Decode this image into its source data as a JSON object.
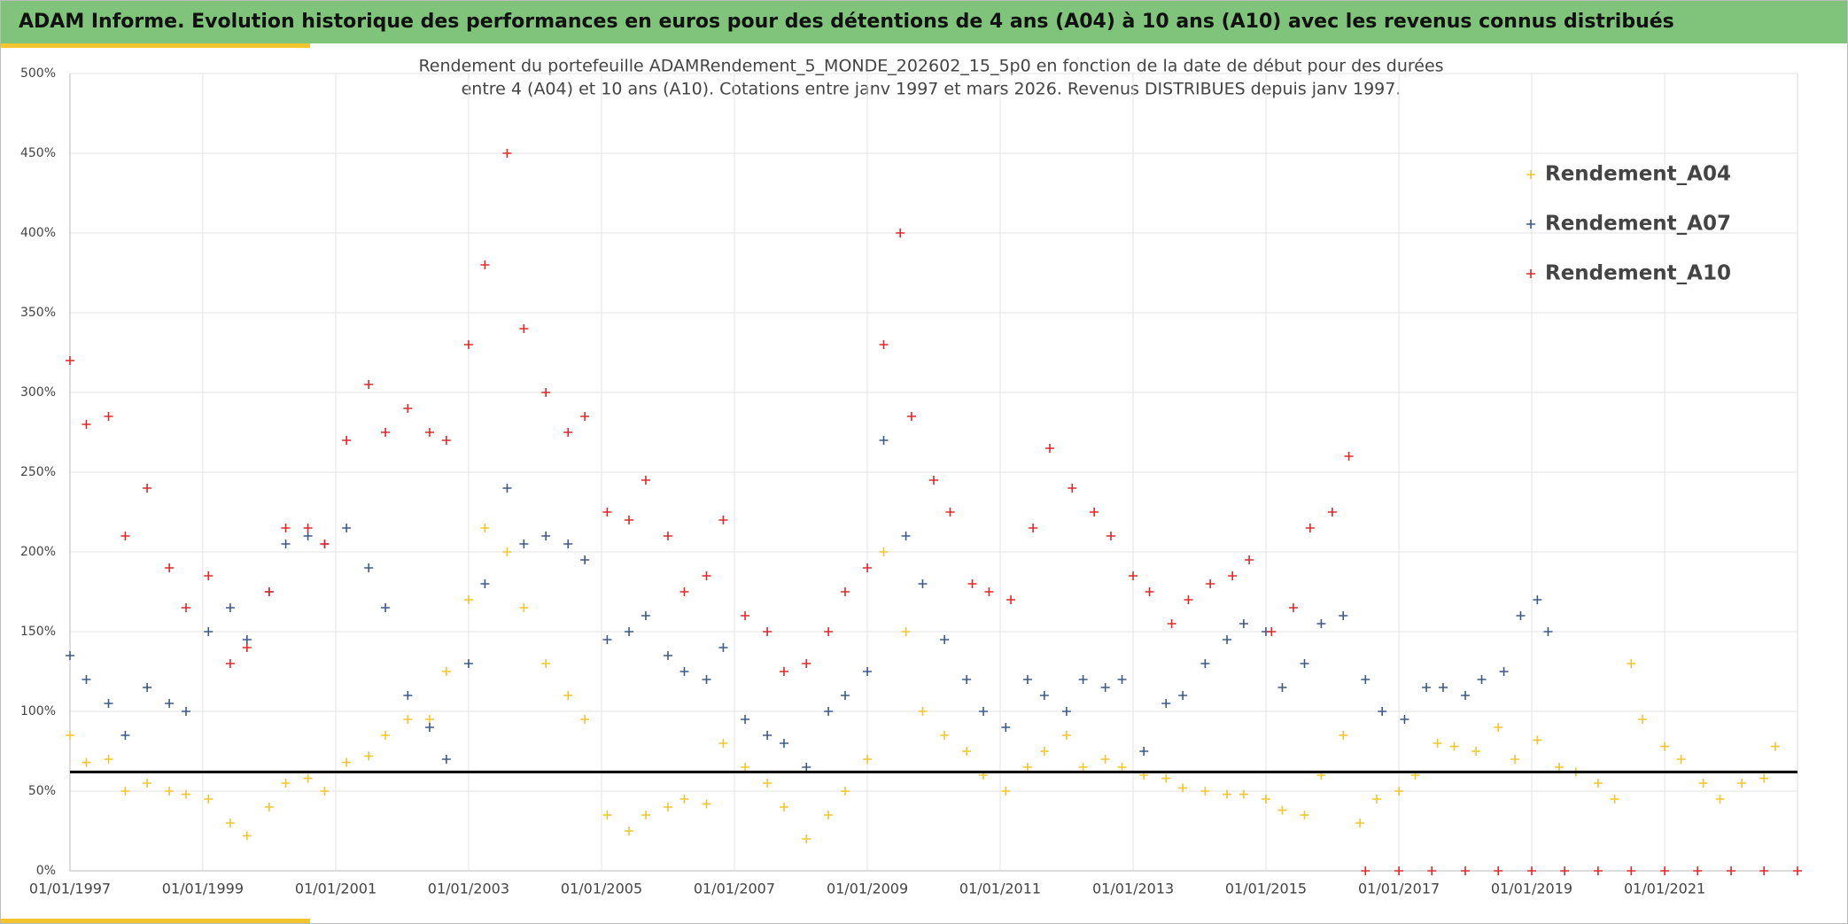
{
  "header": {
    "title": "ADAM Informe. Evolution historique des performances en euros pour des détentions de 4 ans (A04) à 10 ans (A10) avec les revenus connus distribués"
  },
  "chart_data": {
    "type": "scatter",
    "title_lines": [
      "Rendement du portefeuille ADAMRendement_5_MONDE_202602_15_5p0  en fonction de la date de début pour des durées",
      "entre 4 (A04) et 10 ans (A10). Cotations entre janv 1997 et mars 2026. Revenus DISTRIBUES depuis janv 1997."
    ],
    "xlim": [
      "1997-01-01",
      "2023-01-01"
    ],
    "xticks": [
      {
        "value": "1997-01-01",
        "label": "01/01/1997"
      },
      {
        "value": "1999-01-01",
        "label": "01/01/1999"
      },
      {
        "value": "2001-01-01",
        "label": "01/01/2001"
      },
      {
        "value": "2003-01-01",
        "label": "01/01/2003"
      },
      {
        "value": "2005-01-01",
        "label": "01/01/2005"
      },
      {
        "value": "2007-01-01",
        "label": "01/01/2007"
      },
      {
        "value": "2009-01-01",
        "label": "01/01/2009"
      },
      {
        "value": "2011-01-01",
        "label": "01/01/2011"
      },
      {
        "value": "2013-01-01",
        "label": "01/01/2013"
      },
      {
        "value": "2015-01-01",
        "label": "01/01/2015"
      },
      {
        "value": "2017-01-01",
        "label": "01/01/2017"
      },
      {
        "value": "2019-01-01",
        "label": "01/01/2019"
      },
      {
        "value": "2021-01-01",
        "label": "01/01/2021"
      }
    ],
    "ylim": [
      0,
      500
    ],
    "yticks": [
      {
        "value": 0,
        "label": "0%"
      },
      {
        "value": 50,
        "label": "50%"
      },
      {
        "value": 100,
        "label": "100%"
      },
      {
        "value": 150,
        "label": "150%"
      },
      {
        "value": 200,
        "label": "200%"
      },
      {
        "value": 250,
        "label": "250%"
      },
      {
        "value": 300,
        "label": "300%"
      },
      {
        "value": 350,
        "label": "350%"
      },
      {
        "value": 400,
        "label": "400%"
      },
      {
        "value": 450,
        "label": "450%"
      },
      {
        "value": 500,
        "label": "500%"
      }
    ],
    "grid": true,
    "legend": "upper right",
    "reference_line": 62,
    "reference_color": "#000000",
    "series": [
      {
        "name": "Rendement_A04",
        "color": "#f2c52e",
        "x": [
          "1997-01-01",
          "1997-04-01",
          "1997-08-01",
          "1997-11-01",
          "1998-03-01",
          "1998-07-01",
          "1998-10-01",
          "1999-02-01",
          "1999-06-01",
          "1999-09-01",
          "2000-01-01",
          "2000-04-01",
          "2000-08-01",
          "2000-11-01",
          "2001-03-01",
          "2001-07-01",
          "2001-10-01",
          "2002-02-01",
          "2002-06-01",
          "2002-09-01",
          "2003-01-01",
          "2003-04-01",
          "2003-08-01",
          "2003-11-01",
          "2004-03-01",
          "2004-07-01",
          "2004-10-01",
          "2005-02-01",
          "2005-06-01",
          "2005-09-01",
          "2006-01-01",
          "2006-04-01",
          "2006-08-01",
          "2006-11-01",
          "2007-03-01",
          "2007-07-01",
          "2007-10-01",
          "2008-02-01",
          "2008-06-01",
          "2008-09-01",
          "2009-01-01",
          "2009-04-01",
          "2009-08-01",
          "2009-11-01",
          "2010-03-01",
          "2010-07-01",
          "2010-10-01",
          "2011-02-01",
          "2011-06-01",
          "2011-09-01",
          "2012-01-01",
          "2012-04-01",
          "2012-08-01",
          "2012-11-01",
          "2013-03-01",
          "2013-07-01",
          "2013-10-01",
          "2014-02-01",
          "2014-06-01",
          "2014-09-01",
          "2015-01-01",
          "2015-04-01",
          "2015-08-01",
          "2015-11-01",
          "2016-03-01",
          "2016-06-01",
          "2016-09-01",
          "2017-01-01",
          "2017-04-01",
          "2017-08-01",
          "2017-11-01",
          "2018-03-01",
          "2018-07-01",
          "2018-10-01",
          "2019-02-01",
          "2019-06-01",
          "2019-09-01",
          "2020-01-01",
          "2020-04-01",
          "2020-07-01",
          "2020-09-01",
          "2021-01-01",
          "2021-04-01",
          "2021-08-01",
          "2021-11-01",
          "2022-03-01",
          "2022-07-01",
          "2022-09-01"
        ],
        "values": [
          85,
          68,
          70,
          50,
          55,
          50,
          48,
          45,
          30,
          22,
          40,
          55,
          58,
          50,
          68,
          72,
          85,
          95,
          95,
          125,
          170,
          215,
          200,
          165,
          130,
          110,
          95,
          35,
          25,
          35,
          40,
          45,
          42,
          80,
          65,
          55,
          40,
          20,
          35,
          50,
          70,
          200,
          150,
          100,
          85,
          75,
          60,
          50,
          65,
          75,
          85,
          65,
          70,
          65,
          60,
          58,
          52,
          50,
          48,
          48,
          45,
          38,
          35,
          60,
          85,
          30,
          45,
          50,
          60,
          80,
          78,
          75,
          90,
          70,
          82,
          65,
          62,
          55,
          45,
          130,
          95,
          78,
          70,
          55,
          45,
          55,
          58,
          78
        ]
      },
      {
        "name": "Rendement_A07",
        "color": "#3b5a8a",
        "x": [
          "1997-01-01",
          "1997-04-01",
          "1997-08-01",
          "1997-11-01",
          "1998-03-01",
          "1998-07-01",
          "1998-10-01",
          "1999-02-01",
          "1999-06-01",
          "1999-09-01",
          "2000-01-01",
          "2000-04-01",
          "2000-08-01",
          "2000-11-01",
          "2001-03-01",
          "2001-07-01",
          "2001-10-01",
          "2002-02-01",
          "2002-06-01",
          "2002-09-01",
          "2003-01-01",
          "2003-04-01",
          "2003-08-01",
          "2003-11-01",
          "2004-03-01",
          "2004-07-01",
          "2004-10-01",
          "2005-02-01",
          "2005-06-01",
          "2005-09-01",
          "2006-01-01",
          "2006-04-01",
          "2006-08-01",
          "2006-11-01",
          "2007-03-01",
          "2007-07-01",
          "2007-10-01",
          "2008-02-01",
          "2008-06-01",
          "2008-09-01",
          "2009-01-01",
          "2009-04-01",
          "2009-08-01",
          "2009-11-01",
          "2010-03-01",
          "2010-07-01",
          "2010-10-01",
          "2011-02-01",
          "2011-06-01",
          "2011-09-01",
          "2012-01-01",
          "2012-04-01",
          "2012-08-01",
          "2012-11-01",
          "2013-03-01",
          "2013-07-01",
          "2013-10-01",
          "2014-02-01",
          "2014-06-01",
          "2014-09-01",
          "2015-01-01",
          "2015-04-01",
          "2015-08-01",
          "2015-11-01",
          "2016-03-01",
          "2016-07-01",
          "2016-10-01",
          "2017-02-01",
          "2017-06-01",
          "2017-09-01",
          "2018-01-01",
          "2018-04-01",
          "2018-08-01",
          "2018-11-01",
          "2019-02-01",
          "2019-04-01"
        ],
        "values": [
          135,
          120,
          105,
          85,
          115,
          105,
          100,
          150,
          165,
          145,
          175,
          205,
          210,
          205,
          215,
          190,
          165,
          110,
          90,
          70,
          130,
          180,
          240,
          205,
          210,
          205,
          195,
          145,
          150,
          160,
          135,
          125,
          120,
          140,
          95,
          85,
          80,
          65,
          100,
          110,
          125,
          270,
          210,
          180,
          145,
          120,
          100,
          90,
          120,
          110,
          100,
          120,
          115,
          120,
          75,
          105,
          110,
          130,
          145,
          155,
          150,
          115,
          130,
          155,
          160,
          120,
          100,
          95,
          115,
          115,
          110,
          120,
          125,
          160,
          170,
          150
        ]
      },
      {
        "name": "Rendement_A10",
        "color": "#e02828",
        "x": [
          "1997-01-01",
          "1997-04-01",
          "1997-08-01",
          "1997-11-01",
          "1998-03-01",
          "1998-07-01",
          "1998-10-01",
          "1999-02-01",
          "1999-06-01",
          "1999-09-01",
          "2000-01-01",
          "2000-04-01",
          "2000-08-01",
          "2000-11-01",
          "2001-03-01",
          "2001-07-01",
          "2001-10-01",
          "2002-02-01",
          "2002-06-01",
          "2002-09-01",
          "2003-01-01",
          "2003-04-01",
          "2003-08-01",
          "2003-11-01",
          "2004-03-01",
          "2004-07-01",
          "2004-10-01",
          "2005-02-01",
          "2005-06-01",
          "2005-09-01",
          "2006-01-01",
          "2006-04-01",
          "2006-08-01",
          "2006-11-01",
          "2007-03-01",
          "2007-07-01",
          "2007-10-01",
          "2008-02-01",
          "2008-06-01",
          "2008-09-01",
          "2009-01-01",
          "2009-04-01",
          "2009-07-01",
          "2009-09-01",
          "2010-01-01",
          "2010-04-01",
          "2010-08-01",
          "2010-11-01",
          "2011-03-01",
          "2011-07-01",
          "2011-10-01",
          "2012-02-01",
          "2012-06-01",
          "2012-09-01",
          "2013-01-01",
          "2013-04-01",
          "2013-08-01",
          "2013-11-01",
          "2014-03-01",
          "2014-07-01",
          "2014-10-01",
          "2015-02-01",
          "2015-06-01",
          "2015-09-01",
          "2016-01-01",
          "2016-04-01",
          "2016-07-01",
          "2017-01-01",
          "2017-07-01",
          "2018-01-01",
          "2018-07-01",
          "2019-01-01",
          "2019-07-01",
          "2020-01-01",
          "2020-07-01",
          "2021-01-01",
          "2021-07-01",
          "2022-01-01",
          "2022-07-01",
          "2023-01-01"
        ],
        "values": [
          320,
          280,
          285,
          210,
          240,
          190,
          165,
          185,
          130,
          140,
          175,
          215,
          215,
          205,
          270,
          305,
          275,
          290,
          275,
          270,
          330,
          380,
          450,
          340,
          300,
          275,
          285,
          225,
          220,
          245,
          210,
          175,
          185,
          220,
          160,
          150,
          125,
          130,
          150,
          175,
          190,
          330,
          400,
          285,
          245,
          225,
          180,
          175,
          170,
          215,
          265,
          240,
          225,
          210,
          185,
          175,
          155,
          170,
          180,
          185,
          195,
          150,
          165,
          215,
          225,
          260,
          0,
          0,
          0,
          0,
          0,
          0,
          0,
          0,
          0,
          0,
          0,
          0,
          0,
          0
        ]
      }
    ]
  }
}
